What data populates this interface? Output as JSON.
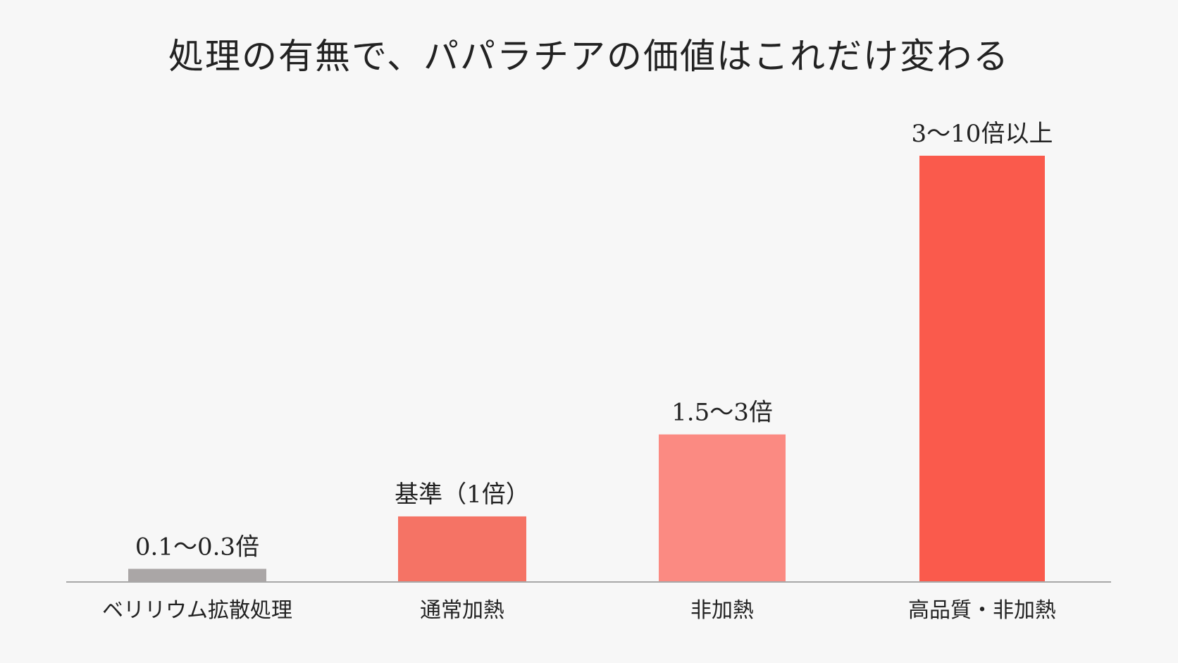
{
  "chart_data": {
    "type": "bar",
    "title": "処理の有無で、パパラチアの価値はこれだけ変わる",
    "xlabel": "",
    "ylabel": "",
    "categories": [
      "ベリリウム拡散処理",
      "通常加熱",
      "非加熱",
      "高品質・非加熱"
    ],
    "values": [
      0.2,
      1,
      2.25,
      6.5
    ],
    "value_labels": [
      "0.1〜0.3倍",
      "基準（1倍）",
      "1.5〜3倍",
      "3〜10倍以上"
    ],
    "ylim": [
      0,
      6.5
    ],
    "grid": false,
    "legend": "none",
    "colors": [
      "#aaa6a6",
      "#f57365",
      "#fb8a82",
      "#fa5a4c"
    ],
    "axis_color": "#a8a8a8"
  }
}
